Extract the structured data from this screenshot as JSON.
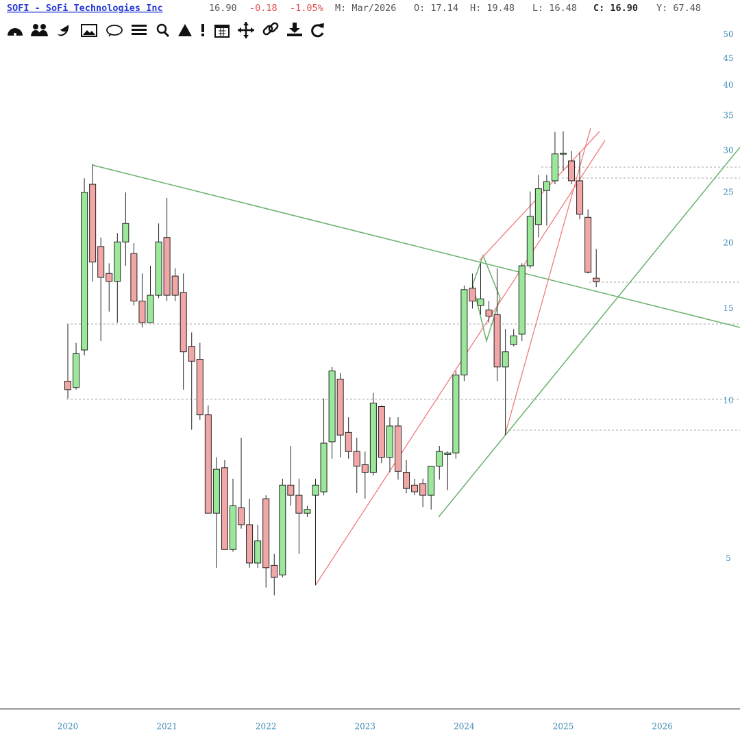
{
  "header": {
    "title": "SOFI - SoFi Technologies Inc",
    "last": "16.90",
    "change": "-0.18",
    "change_pct": "-1.05%",
    "period": "M: Mar/2026",
    "open": "O: 17.14",
    "high": "H: 19.48",
    "low": "L: 16.48",
    "close": "C: 16.90",
    "extra": "Y: 67.48"
  },
  "chart_data": {
    "type": "candlestick",
    "log": true,
    "up_color": "#9be89b",
    "down_color": "#f2a7a7",
    "categories": [
      "2020",
      null,
      null,
      null,
      null,
      null,
      null,
      null,
      null,
      null,
      null,
      null,
      "2021",
      null,
      null,
      null,
      null,
      null,
      null,
      null,
      null,
      null,
      null,
      null,
      "2022",
      null,
      null,
      null,
      null,
      null,
      null,
      null,
      null,
      null,
      null,
      null,
      "2023",
      null,
      null,
      null,
      null,
      null,
      null,
      null,
      null,
      null,
      null,
      null,
      "2024",
      null,
      null,
      null,
      null,
      null,
      null,
      null,
      null,
      null,
      null,
      null,
      "2025",
      null,
      null,
      null,
      null,
      null,
      null,
      null,
      null,
      null,
      null,
      null,
      "2026"
    ],
    "open": [
      10.9,
      10.6,
      12.5,
      25.9,
      19.7,
      17.5,
      16.9,
      20.1,
      19.1,
      15.5,
      14.1,
      15.9,
      20.5,
      17.3,
      16.1,
      12.7,
      12.0,
      9.4,
      6.1,
      7.45,
      5.2,
      6.25,
      5.8,
      4.9,
      6.5,
      4.85,
      4.65,
      6.9,
      6.6,
      6.1,
      6.6,
      6.7,
      8.35,
      11.0,
      8.7,
      8.0,
      7.55,
      7.3,
      9.75,
      7.8,
      8.95,
      7.3,
      6.9,
      6.95,
      6.6,
      7.5,
      7.9,
      7.95,
      11.2,
      16.4,
      15.2,
      14.9,
      14.6,
      11.6,
      12.8,
      13.4,
      18.1,
      21.7,
      25.2,
      26.3,
      29.6,
      28.7,
      26.3,
      22.4,
      17.14,
      null,
      null,
      null,
      null,
      null,
      null,
      null,
      null
    ],
    "high": [
      14.0,
      12.9,
      26.6,
      28.3,
      20.5,
      18.3,
      20.9,
      25.0,
      20.0,
      17.5,
      18.1,
      21.8,
      24.4,
      17.9,
      17.5,
      13.5,
      12.9,
      9.8,
      7.8,
      7.7,
      7.1,
      8.5,
      6.5,
      5.8,
      6.6,
      5.1,
      7.1,
      8.2,
      7.1,
      6.3,
      7.1,
      10.1,
      11.6,
      11.3,
      9.3,
      8.5,
      8.0,
      10.35,
      9.8,
      9.3,
      9.3,
      7.7,
      7.1,
      7.1,
      7.5,
      8.2,
      8.0,
      11.4,
      16.6,
      17.5,
      18.3,
      15.5,
      17.9,
      13.7,
      13.7,
      18.3,
      25.1,
      27.0,
      27.0,
      32.6,
      32.7,
      30.0,
      29.8,
      23.2,
      19.48,
      null,
      null,
      null,
      null,
      null,
      null,
      null,
      null
    ],
    "low": [
      10.1,
      10.5,
      12.2,
      16.9,
      13.0,
      14.8,
      14.1,
      18.1,
      15.2,
      13.8,
      14.1,
      15.7,
      15.5,
      15.5,
      10.5,
      8.8,
      9.2,
      6.1,
      4.8,
      5.2,
      5.15,
      5.7,
      4.8,
      4.8,
      4.4,
      4.25,
      4.6,
      6.3,
      5.1,
      6.0,
      4.45,
      6.6,
      7.75,
      7.8,
      7.75,
      6.66,
      6.5,
      7.2,
      7.6,
      7.3,
      7.07,
      6.66,
      6.6,
      6.27,
      6.2,
      7.07,
      6.75,
      7.75,
      10.9,
      15.0,
      14.6,
      14.1,
      10.9,
      8.6,
      12.7,
      13.0,
      17.9,
      20.5,
      21.6,
      25.9,
      27.5,
      25.9,
      22.2,
      17.5,
      16.48,
      null,
      null,
      null,
      null,
      null,
      null,
      null,
      null
    ],
    "close": [
      10.5,
      12.3,
      25.0,
      18.4,
      17.2,
      16.9,
      20.1,
      21.8,
      15.5,
      14.1,
      15.9,
      20.1,
      15.9,
      15.9,
      12.4,
      11.9,
      9.4,
      6.1,
      7.4,
      5.2,
      6.3,
      5.8,
      4.9,
      5.4,
      4.8,
      4.6,
      6.9,
      6.6,
      6.1,
      6.2,
      6.9,
      8.3,
      11.4,
      8.6,
      8.0,
      7.5,
      7.3,
      9.9,
      7.8,
      8.95,
      7.33,
      6.8,
      6.7,
      6.6,
      7.5,
      8.0,
      7.95,
      11.2,
      16.3,
      15.5,
      15.65,
      14.5,
      11.6,
      12.4,
      13.3,
      18.1,
      22.5,
      25.4,
      26.2,
      29.6,
      29.7,
      26.3,
      22.7,
      17.6,
      16.9,
      null,
      null,
      null,
      null,
      null,
      null,
      null,
      null
    ],
    "ylim": [
      2.58,
      53.2
    ],
    "yticks": [
      5,
      10,
      15,
      20,
      25,
      30,
      35,
      40,
      45,
      50
    ]
  }
}
